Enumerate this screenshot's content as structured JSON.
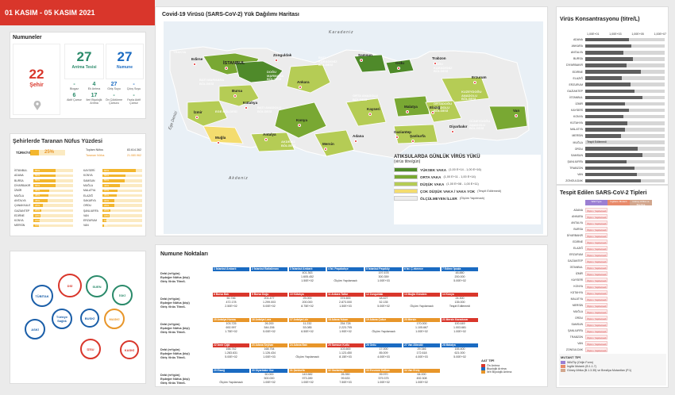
{
  "date_range": "01 KASIM - 05 KASIM 2021",
  "numuneler": {
    "title": "Numuneler",
    "sehir_count": "22",
    "sehir_label": "Şehir",
    "aritma_count": "27",
    "aritma_label": "Arıtma Tesisi",
    "numune_count": "27",
    "numune_label": "Numune",
    "sub": [
      {
        "n": "-",
        "l": "Biogaz"
      },
      {
        "n": "4",
        "l": "Ek Arıtma"
      },
      {
        "n": "27",
        "l": "Giriş Suyu"
      },
      {
        "n": "-",
        "l": "Çıkış Suyu"
      },
      {
        "n": "6",
        "l": "Aktif Çamur"
      },
      {
        "n": "17",
        "l": "Ileri Biyolojik Arıtma"
      },
      {
        "n": "-",
        "l": "Ön Çöktürme Çamuru"
      },
      {
        "n": "-",
        "l": "Fazla Aktif Çamur"
      }
    ]
  },
  "nufus": {
    "title": "Şehirlerde Taranan Nüfus Yüzdesi",
    "turkiye_label": "TÜRKİYE",
    "turkiye_pct": "25%",
    "toplam_label": "Toplam Nüfus",
    "toplam_val": "83.614.362",
    "taranan_label": "Taranan Nüfus",
    "taranan_val": "21.080.962",
    "left": [
      {
        "name": "İSTANBUL",
        "pct": "55%",
        "v": 0.55
      },
      {
        "name": "ADANA",
        "pct": "56%",
        "v": 0.56
      },
      {
        "name": "BURSA",
        "pct": "56%",
        "v": 0.56
      },
      {
        "name": "DİYARBAKIR",
        "pct": "55%",
        "v": 0.55
      },
      {
        "name": "İZMİR",
        "pct": "40%",
        "v": 0.4
      },
      {
        "name": "MUĞLA",
        "pct": "38%",
        "v": 0.38
      },
      {
        "name": "ANTALYA",
        "pct": "35%",
        "v": 0.35
      },
      {
        "name": "ÇANAKKALE",
        "pct": "24%",
        "v": 0.24
      },
      {
        "name": "GAZİANTEP",
        "pct": "20%",
        "v": 0.2
      },
      {
        "name": "EDİRNE",
        "pct": "18%",
        "v": 0.18
      },
      {
        "name": "KONYA",
        "pct": "15%",
        "v": 0.15
      },
      {
        "name": "MERSİN",
        "pct": "13%",
        "v": 0.13
      }
    ],
    "right": [
      {
        "name": "KAYSERİ",
        "pct": "84%",
        "v": 0.84
      },
      {
        "name": "KONYA",
        "pct": "58%",
        "v": 0.58
      },
      {
        "name": "SAMSUN",
        "pct": "55%",
        "v": 0.55
      },
      {
        "name": "MUĞLA",
        "pct": "43%",
        "v": 0.43
      },
      {
        "name": "MALATYA",
        "pct": "37%",
        "v": 0.37
      },
      {
        "name": "ELAZIĞ",
        "pct": "35%",
        "v": 0.35
      },
      {
        "name": "SAKARYA",
        "pct": "30%",
        "v": 0.3
      },
      {
        "name": "ORDU",
        "pct": "29%",
        "v": 0.29
      },
      {
        "name": "ŞANLIURFA",
        "pct": "20%",
        "v": 0.2
      },
      {
        "name": "VAN",
        "pct": "18%",
        "v": 0.18
      },
      {
        "name": "ERZURUM",
        "pct": "10%",
        "v": 0.1
      },
      {
        "name": "VAN",
        "pct": "4%",
        "v": 0.04
      }
    ]
  },
  "map": {
    "title": "Covid-19 Virüsü (SARS-CoV-2) Yük Dağılımı Haritası",
    "sea_north": "Karadeniz",
    "sea_south": "Akdeniz",
    "sea_west": "Ege Denizi",
    "regions": [
      "TRAKYA",
      "BATI KARADENİZ BÖLGESİ",
      "DOĞU MARMARA BÖLGESİ",
      "BATI MARMARA BÖLGESİ",
      "EGE BÖLGESİ",
      "BATI ANADOLU BÖLGESİ",
      "ORTA ANADOLU BÖLGESİ",
      "AKDENİZ BÖLGESİ",
      "DOĞU KARADENİZ BÖLGESİ",
      "KUZEYDOĞU ANADOLU BÖLGESİ",
      "ORTADOĞU ANADOLU BÖLGESİ",
      "GÜNEYDOĞU ANADOLU BÖLGESİ"
    ],
    "cities": [
      "İSTANBUL",
      "Edirne",
      "Zonguldak",
      "Samsun",
      "Ordu",
      "Trabzon",
      "Erzurum",
      "Van",
      "Bursa",
      "Ankara",
      "Kütahya",
      "Kayseri",
      "Malatya",
      "Elazığ",
      "Diyarbakır",
      "İzmir",
      "Konya",
      "Adana",
      "Muğla",
      "Antalya",
      "Mersin",
      "Gaziantep",
      "Şanlıurfa"
    ],
    "legend_title": "ATIKSULARDA GÜNLÜK VİRÜS YÜKÜ",
    "legend_sub": "(virüs titre/gün)",
    "legend": [
      {
        "label": "YÜKSEK VAKA",
        "range": "(1,00 E+14 - 1,00 E+16)",
        "color": "#4f8a2a"
      },
      {
        "label": "ORTA VAKA",
        "range": "(1,00 E+11 - 1,00 E+14)",
        "color": "#79a833"
      },
      {
        "label": "DÜŞÜK VAKA",
        "range": "(1,00 E+08 - 1,00 E+11)",
        "color": "#b5cc55"
      },
      {
        "label": "ÇOK DÜŞÜK VAKA / VAKA YOK",
        "range": "(Tespit Edilemedi)",
        "color": "#f4dc6e"
      },
      {
        "label": "ÖLÇÜLMEYEN İLLER",
        "range": "(Ölçüm Yapılmadı)",
        "color": "#ececec"
      }
    ]
  },
  "virus": {
    "title": "Virüs Konsantrasyonu (titre/L)",
    "ticks": [
      "1,00E+01",
      "1,00E+03",
      "1,00E+05",
      "1,00E+07"
    ],
    "rows": [
      {
        "name": "ADANA",
        "v": 0.55,
        "note": ""
      },
      {
        "name": "ANKARA",
        "v": 0.58,
        "note": ""
      },
      {
        "name": "ANTALYA",
        "v": 0.48,
        "note": ""
      },
      {
        "name": "BURSA",
        "v": 0.6,
        "note": ""
      },
      {
        "name": "DİYARBAKIR",
        "v": 0.52,
        "note": ""
      },
      {
        "name": "EDİRNE",
        "v": 0.7,
        "note": ""
      },
      {
        "name": "ELAZIĞ",
        "v": 0.46,
        "note": ""
      },
      {
        "name": "ERZURUM",
        "v": 0.57,
        "note": ""
      },
      {
        "name": "GAZİANTEP",
        "v": 0.62,
        "note": ""
      },
      {
        "name": "İSTANBUL",
        "v": 0.72,
        "note": ""
      },
      {
        "name": "İZMİR",
        "v": 0.5,
        "note": ""
      },
      {
        "name": "KAYSERİ",
        "v": 0.55,
        "note": ""
      },
      {
        "name": "KONYA",
        "v": 0.48,
        "note": ""
      },
      {
        "name": "KÜTAHYA",
        "v": 0.53,
        "note": ""
      },
      {
        "name": "MALATYA",
        "v": 0.5,
        "note": ""
      },
      {
        "name": "MERSİN",
        "v": 0.45,
        "note": ""
      },
      {
        "name": "MUĞLA",
        "v": 0,
        "note": "Tespit Edilemedi"
      },
      {
        "name": "ORDU",
        "v": 0.66,
        "note": ""
      },
      {
        "name": "SAMSUN",
        "v": 0.72,
        "note": ""
      },
      {
        "name": "ŞANLIURFA",
        "v": 0.52,
        "note": ""
      },
      {
        "name": "TRABZON",
        "v": 0.62,
        "note": ""
      },
      {
        "name": "VAN",
        "v": 0.65,
        "note": ""
      },
      {
        "name": "ZONGULDAK",
        "v": 0.7,
        "note": ""
      }
    ]
  },
  "tipler": {
    "title": "Tespit Edilen SARS-CoV-2 Tipleri",
    "col_headers": [
      "Wild Type",
      "İngiltere Mutantı",
      "Güney Afrika ve Brezilya"
    ],
    "cell_text": "Ölçüm Yapılamadı",
    "rows": [
      "ADANA",
      "ANKARA",
      "ANTALYA",
      "BURSA",
      "DİYARBAKIR",
      "EDİRNE",
      "ELAZIĞ",
      "ERZURUM",
      "GAZİANTEP",
      "İSTANBUL",
      "İZMİR",
      "KAYSERİ",
      "KONYA",
      "KÜTAHYA",
      "MALATYA",
      "MERSİN",
      "MUĞLA",
      "ORDU",
      "SAMSUN",
      "ŞANLIURFA",
      "TRABZON",
      "VAN",
      "ZONGULDAK"
    ],
    "mutant_title": "MUTANT TİPİ",
    "mutant_items": [
      "WildTip (Orijin Form)",
      "İngiliz Mutantı (B.1.1.7)",
      "Güney Afrika (B.1.3.35) ve Brezilya Mutantları (P.1)"
    ]
  },
  "numune": {
    "title": "Numune Noktaları",
    "row_labels": [
      "Debi (m³/gün)",
      "Eşdeğer Nüfus (kişi)",
      "Giriş Virüs Titre/L"
    ],
    "blocks": [
      [
        {
          "h": "1 İstanbul Ambarlı",
          "c": "#1a6bc2",
          "v": [
            "",
            "",
            ""
          ]
        },
        {
          "h": "2 İstanbul Baltalimanı",
          "c": "#1a6bc2",
          "v": [
            "",
            "",
            ""
          ]
        },
        {
          "h": "3 İstanbul Ambarlı",
          "c": "#1a6bc2",
          "v": [
            "401.363",
            "1.605.452",
            "1.50E+02"
          ]
        },
        {
          "h": "4 İst. Paşabahçe",
          "c": "#1a6bc2",
          "v": [
            "",
            "",
            "Ölçüm Yapılamadı"
          ]
        },
        {
          "h": "5 İstanbul Paşaköy",
          "c": "#1a6bc2",
          "v": [
            "197.678",
            "300.359",
            "1.00E+03"
          ]
        },
        {
          "h": "6 İst. Ç.ekmece",
          "c": "#1a6bc2",
          "v": [
            "",
            "",
            ""
          ]
        },
        {
          "h": "7 Edirne İpsala",
          "c": "#1a6bc2",
          "v": [
            "48.880",
            "200.000",
            "5.00E+02"
          ]
        }
      ],
      [
        {
          "h": "8 Bursa Batı",
          "c": "#d9362b",
          "v": [
            "50.746",
            "472.178",
            "2.50E+02"
          ]
        },
        {
          "h": "9 Bursa Doğu",
          "c": "#d9362b",
          "v": [
            "201.477",
            "1.299.003",
            "5.00E+02"
          ]
        },
        {
          "h": "10 Kütahya",
          "c": "#d9362b",
          "v": [
            "25.000",
            "200.000",
            "8.75E+02"
          ]
        },
        {
          "h": "11 Ankara Tatlar",
          "c": "#d9362b",
          "v": [
            "374.600",
            "2.873.000",
            "1.50E+03"
          ]
        },
        {
          "h": "12 Zonguldak",
          "c": "#d9362b",
          "v": [
            "18.427",
            "52.135",
            "5.00E+02"
          ]
        },
        {
          "h": "13 Muğla Gündem",
          "c": "#d9362b",
          "v": [
            "",
            "",
            "Ölçüm Yapılamadı"
          ]
        },
        {
          "h": "14 Konya",
          "c": "#d9362b",
          "v": [
            "24.300",
            "135.000",
            "Tespit Edilemedi"
          ]
        }
      ],
      [
        {
          "h": "15 Antalya Hurma",
          "c": "#e8962a",
          "v": [
            "103.725",
            "692.997",
            "1.75E+02"
          ]
        },
        {
          "h": "16 Antalya Lara",
          "c": "#e8962a",
          "v": [
            "26.200",
            "544.206",
            "5.00E+02"
          ]
        },
        {
          "h": "17 Antalya Ldz",
          "c": "#e8962a",
          "v": [
            "11.232",
            "53.085",
            "6.50E+02"
          ]
        },
        {
          "h": "18 Adana Yukarı",
          "c": "#e8962a",
          "v": [
            "254.728",
            "2.223.705",
            "1.90E+02"
          ]
        },
        {
          "h": "19 Adana Çukur",
          "c": "#e8962a",
          "v": [
            "",
            "",
            "Ölçüm Yapılamadı"
          ]
        },
        {
          "h": "20 Mersin",
          "c": "#e8962a",
          "v": [
            "170.000",
            "1.105.667",
            "1.00E+02"
          ]
        },
        {
          "h": "21 Mersin Karaduvar",
          "c": "#d9362b",
          "v": [
            "100.449",
            "1.003.681",
            "1.00E+02"
          ]
        }
      ],
      [
        {
          "h": "22 İzmir Çiğli",
          "c": "#d9362b",
          "v": [
            "166.742",
            "1.283.631",
            "5.00E+02"
          ]
        },
        {
          "h": "23 Adana Seyhan",
          "c": "#e8962a",
          "v": [
            "168.754",
            "1.126.434",
            "1.00E+03"
          ]
        },
        {
          "h": "24 Adana Batı",
          "c": "#e8962a",
          "v": [
            "",
            "",
            "Ölçüm Yapılamadı"
          ]
        },
        {
          "h": "25 Samsun Kutlu",
          "c": "#d9362b",
          "v": [
            "103.600",
            "1.123.450",
            "8.15E+03"
          ]
        },
        {
          "h": "26 Ordu",
          "c": "#1a6bc2",
          "v": [
            "17.000",
            "85.009",
            "4.00E+03"
          ]
        },
        {
          "h": "27 Van Altındöl",
          "c": "#1a6bc2",
          "v": [
            "29.346",
            "172.618",
            "4.00E+03"
          ]
        },
        {
          "h": "28 Malatya",
          "c": "#1a6bc2",
          "v": [
            "155.400",
            "621.000",
            "5.00E+02"
          ]
        }
      ],
      [
        {
          "h": "29 Elazığ",
          "c": "#1a6bc2",
          "v": [
            "",
            "",
            "Ölçüm Yapılamadı"
          ]
        },
        {
          "h": "30 Diyarbakır Gaz",
          "c": "#1a6bc2",
          "v": [
            "50.000",
            "500.000",
            "1.00E+02"
          ]
        },
        {
          "h": "31 Şanlıurfa",
          "c": "#e8962a",
          "v": [
            "143.582",
            "973.289",
            "1.00E+02"
          ]
        },
        {
          "h": "32 Gaziantep",
          "c": "#e8962a",
          "v": [
            "26.350",
            "99.633",
            "7.50E+03"
          ]
        },
        {
          "h": "33 Erzurum Kafkas",
          "c": "#e8962a",
          "v": [
            "99.970",
            "579.375",
            "1.00E+02"
          ]
        },
        {
          "h": "34 Van Erciş",
          "c": "#e8962a",
          "v": [
            "64.000",
            "492.308",
            "1.00E+02"
          ]
        },
        {
          "h": "",
          "c": "#fff",
          "v": [
            "",
            "",
            ""
          ]
        }
      ]
    ],
    "aat_title": "AAT TİPİ",
    "aat_items": [
      {
        "l": "Ön Arıtma",
        "c": "#d9362b"
      },
      {
        "l": "Biyolojik Arıtma",
        "c": "#1a6bc2"
      },
      {
        "l": "İleri Biyolojik Arıtma",
        "c": "#e8962a"
      }
    ]
  },
  "logos": [
    "TÜBİTAK",
    "DSİ",
    "SUEN",
    "İSKİ",
    "ASKİ",
    "Türkiye Sağlık",
    "BUSKİ",
    "MASKİ",
    "KASKİ",
    "İZSU"
  ]
}
